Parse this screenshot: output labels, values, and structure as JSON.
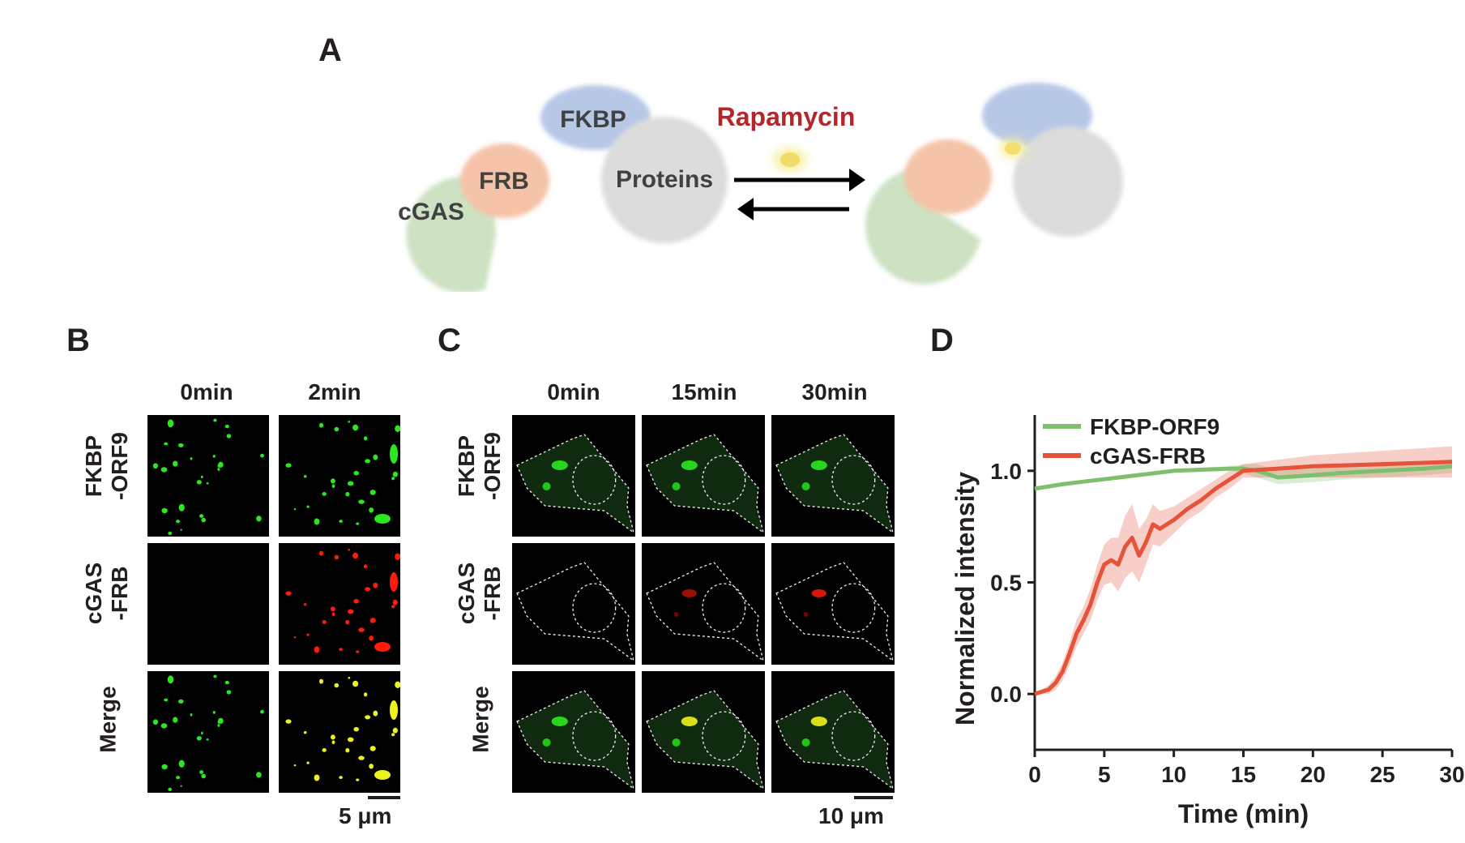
{
  "panels": {
    "a": {
      "letter": "A",
      "labels": {
        "fkbp": "FKBP",
        "frb": "FRB",
        "cgas": "cGAS",
        "proteins": "Proteins",
        "rapamycin": "Rapamycin"
      }
    },
    "b": {
      "letter": "B",
      "columns": [
        "0min",
        "2min"
      ],
      "rows": [
        {
          "line1": "FKBP",
          "line2": "-ORF9"
        },
        {
          "line1": "cGAS",
          "line2": "-FRB"
        },
        {
          "line1": "Merge",
          "line2": ""
        }
      ],
      "scale": "5 μm"
    },
    "c": {
      "letter": "C",
      "columns": [
        "0min",
        "15min",
        "30min"
      ],
      "rows": [
        {
          "line1": "FKBP",
          "line2": "-ORF9"
        },
        {
          "line1": "cGAS",
          "line2": "-FRB"
        },
        {
          "line1": "Merge",
          "line2": ""
        }
      ],
      "scale": "10 μm"
    },
    "d": {
      "letter": "D"
    }
  },
  "colors": {
    "green": "#2be81e",
    "red": "#ff1a0a",
    "yellow": "#eef21a",
    "series_green": "#7dbf6e",
    "series_red": "#e4533a"
  },
  "chart_data": {
    "type": "line",
    "xlabel": "Time (min)",
    "ylabel": "Normalized intensity",
    "xlim": [
      0,
      30
    ],
    "ylim": [
      -0.25,
      1.25
    ],
    "xticks": [
      0,
      5,
      10,
      15,
      20,
      25,
      30
    ],
    "yticks": [
      0.0,
      0.5,
      1.0
    ],
    "ytick_labels": [
      "0.0",
      "0.5",
      "1.0"
    ],
    "legend_position": "top-left",
    "series": [
      {
        "name": "FKBP-ORF9",
        "color": "#7dbf6e",
        "x": [
          0,
          2,
          4,
          6,
          8,
          10,
          12,
          14,
          15,
          16,
          17.5,
          20,
          22,
          25,
          28,
          30
        ],
        "y": [
          0.92,
          0.94,
          0.955,
          0.97,
          0.985,
          1.0,
          1.005,
          1.01,
          1.01,
          1.0,
          0.97,
          0.98,
          0.99,
          1.0,
          1.01,
          1.02
        ],
        "band": [
          0.005,
          0.005,
          0.005,
          0.005,
          0.005,
          0.005,
          0.01,
          0.01,
          0.02,
          0.03,
          0.03,
          0.03,
          0.03,
          0.03,
          0.03,
          0.03
        ]
      },
      {
        "name": "cGAS-FRB",
        "color": "#e4533a",
        "x": [
          0,
          0.5,
          1,
          1.5,
          2,
          2.5,
          3,
          3.5,
          4,
          4.5,
          5,
          5.5,
          6,
          6.5,
          7,
          7.5,
          8,
          8.5,
          9,
          9.5,
          10,
          11,
          12,
          13,
          14,
          15,
          17.5,
          20,
          25,
          30
        ],
        "y": [
          0.0,
          0.01,
          0.02,
          0.05,
          0.1,
          0.18,
          0.27,
          0.33,
          0.4,
          0.5,
          0.58,
          0.6,
          0.58,
          0.66,
          0.7,
          0.62,
          0.68,
          0.76,
          0.74,
          0.76,
          0.78,
          0.83,
          0.87,
          0.92,
          0.96,
          1.0,
          1.01,
          1.02,
          1.03,
          1.04
        ],
        "band": [
          0.005,
          0.01,
          0.02,
          0.03,
          0.04,
          0.05,
          0.06,
          0.06,
          0.07,
          0.08,
          0.09,
          0.1,
          0.12,
          0.14,
          0.15,
          0.12,
          0.1,
          0.09,
          0.08,
          0.07,
          0.06,
          0.05,
          0.05,
          0.04,
          0.04,
          0.03,
          0.04,
          0.05,
          0.06,
          0.07
        ]
      }
    ]
  }
}
